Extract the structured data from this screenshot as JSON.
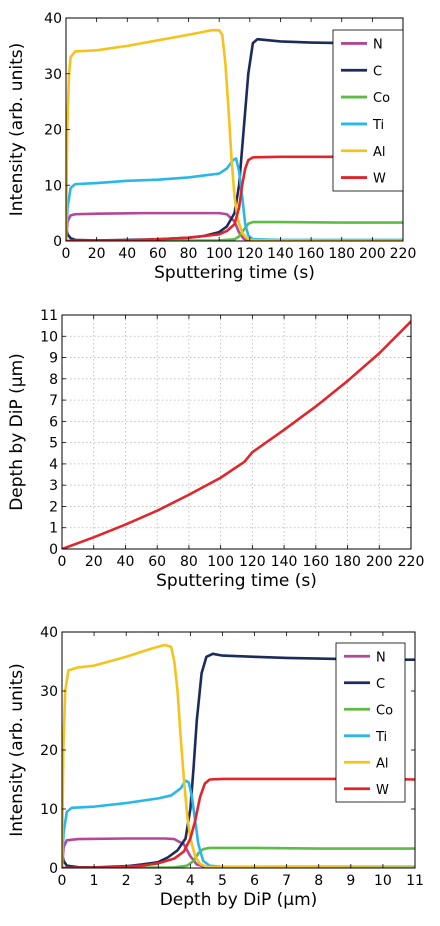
{
  "chart_data": [
    {
      "type": "line",
      "xlabel": "Sputtering time (s)",
      "ylabel": "Intensity (arb. units)",
      "xlim": [
        0,
        220
      ],
      "ylim": [
        0,
        40
      ],
      "xticks": [
        0,
        20,
        40,
        60,
        80,
        100,
        120,
        140,
        160,
        180,
        200,
        220
      ],
      "yticks": [
        0,
        10,
        20,
        30,
        40
      ],
      "grid": false,
      "legend": "top-right",
      "series": [
        {
          "name": "N",
          "color": "#b3489a",
          "points": [
            [
              0,
              0
            ],
            [
              1,
              3.5
            ],
            [
              3,
              4.6
            ],
            [
              6,
              4.8
            ],
            [
              20,
              4.9
            ],
            [
              50,
              5.0
            ],
            [
              80,
              5.0
            ],
            [
              100,
              5.0
            ],
            [
              105,
              4.8
            ],
            [
              110,
              3.5
            ],
            [
              113,
              1.5
            ],
            [
              116,
              0.4
            ],
            [
              120,
              0.1
            ],
            [
              220,
              0.05
            ]
          ]
        },
        {
          "name": "C",
          "color": "#1b2b5e",
          "points": [
            [
              0,
              2.5
            ],
            [
              1,
              1.2
            ],
            [
              3,
              0.5
            ],
            [
              6,
              0.2
            ],
            [
              20,
              0.1
            ],
            [
              40,
              0.2
            ],
            [
              60,
              0.3
            ],
            [
              80,
              0.6
            ],
            [
              90,
              0.9
            ],
            [
              100,
              1.6
            ],
            [
              105,
              2.6
            ],
            [
              110,
              5
            ],
            [
              113,
              10
            ],
            [
              116,
              20
            ],
            [
              119,
              30
            ],
            [
              122,
              35.5
            ],
            [
              125,
              36.2
            ],
            [
              140,
              35.8
            ],
            [
              160,
              35.6
            ],
            [
              180,
              35.5
            ],
            [
              200,
              35.4
            ],
            [
              220,
              35.3
            ]
          ]
        },
        {
          "name": "Co",
          "color": "#5dbb46",
          "points": [
            [
              0,
              0
            ],
            [
              100,
              0.1
            ],
            [
              110,
              0.3
            ],
            [
              113,
              0.8
            ],
            [
              116,
              2
            ],
            [
              119,
              3.1
            ],
            [
              122,
              3.4
            ],
            [
              140,
              3.4
            ],
            [
              180,
              3.3
            ],
            [
              220,
              3.3
            ]
          ]
        },
        {
          "name": "Ti",
          "color": "#2ab7e8",
          "points": [
            [
              0,
              0
            ],
            [
              1,
              6
            ],
            [
              3,
              9.5
            ],
            [
              6,
              10.2
            ],
            [
              20,
              10.4
            ],
            [
              40,
              10.8
            ],
            [
              60,
              11.0
            ],
            [
              80,
              11.4
            ],
            [
              100,
              12.1
            ],
            [
              105,
              13
            ],
            [
              109,
              14.5
            ],
            [
              111,
              14.8
            ],
            [
              113,
              12.5
            ],
            [
              115,
              8
            ],
            [
              117,
              3
            ],
            [
              119,
              1
            ],
            [
              122,
              0.3
            ],
            [
              140,
              0.2
            ],
            [
              220,
              0.2
            ]
          ]
        },
        {
          "name": "Al",
          "color": "#f6c21c",
          "points": [
            [
              0,
              0
            ],
            [
              0.8,
              20
            ],
            [
              2,
              30
            ],
            [
              3,
              33
            ],
            [
              6,
              34
            ],
            [
              20,
              34.2
            ],
            [
              40,
              35
            ],
            [
              60,
              36
            ],
            [
              80,
              37
            ],
            [
              95,
              37.8
            ],
            [
              100,
              37.8
            ],
            [
              102,
              37
            ],
            [
              104,
              32
            ],
            [
              106,
              24
            ],
            [
              108,
              15
            ],
            [
              110,
              8
            ],
            [
              112,
              4
            ],
            [
              115,
              1.5
            ],
            [
              118,
              0.5
            ],
            [
              122,
              0.1
            ],
            [
              220,
              0.05
            ]
          ]
        },
        {
          "name": "W",
          "color": "#e1262b",
          "points": [
            [
              0,
              0
            ],
            [
              10,
              0.05
            ],
            [
              40,
              0.1
            ],
            [
              60,
              0.3
            ],
            [
              80,
              0.6
            ],
            [
              100,
              1.2
            ],
            [
              105,
              1.8
            ],
            [
              110,
              3
            ],
            [
              113,
              6
            ],
            [
              115,
              10
            ],
            [
              117,
              13
            ],
            [
              119,
              14.5
            ],
            [
              122,
              15.0
            ],
            [
              140,
              15.1
            ],
            [
              160,
              15.1
            ],
            [
              180,
              15.1
            ],
            [
              200,
              15.1
            ],
            [
              220,
              15.0
            ]
          ]
        }
      ]
    },
    {
      "type": "line",
      "xlabel": "Sputtering time (s)",
      "ylabel": "Depth by DiP (µm)",
      "xlim": [
        0,
        220
      ],
      "ylim": [
        0,
        11
      ],
      "xticks": [
        0,
        20,
        40,
        60,
        80,
        100,
        120,
        140,
        160,
        180,
        200,
        220
      ],
      "yticks": [
        0,
        1,
        2,
        3,
        4,
        5,
        6,
        7,
        8,
        9,
        10,
        11
      ],
      "grid": true,
      "legend": "none",
      "series": [
        {
          "color": "#e1262b",
          "points": [
            [
              0,
              0
            ],
            [
              20,
              0.55
            ],
            [
              40,
              1.15
            ],
            [
              60,
              1.8
            ],
            [
              80,
              2.55
            ],
            [
              100,
              3.35
            ],
            [
              110,
              3.85
            ],
            [
              115,
              4.1
            ],
            [
              120,
              4.55
            ],
            [
              140,
              5.6
            ],
            [
              160,
              6.7
            ],
            [
              180,
              7.9
            ],
            [
              200,
              9.2
            ],
            [
              220,
              10.7
            ]
          ]
        }
      ]
    },
    {
      "type": "line",
      "xlabel": "Depth by DiP (µm)",
      "ylabel": "Intensity (arb. units)",
      "xlim": [
        0,
        11
      ],
      "ylim": [
        0,
        40
      ],
      "xticks": [
        0,
        1,
        2,
        3,
        4,
        5,
        6,
        7,
        8,
        9,
        10,
        11
      ],
      "yticks": [
        0,
        10,
        20,
        30,
        40
      ],
      "grid": false,
      "legend": "top-right",
      "series": [
        {
          "name": "N",
          "color": "#b3489a",
          "points": [
            [
              0,
              0
            ],
            [
              0.05,
              3.5
            ],
            [
              0.15,
              4.7
            ],
            [
              0.5,
              4.9
            ],
            [
              2,
              5.0
            ],
            [
              3.2,
              5.0
            ],
            [
              3.5,
              4.9
            ],
            [
              3.8,
              4.0
            ],
            [
              4.0,
              2.0
            ],
            [
              4.2,
              0.6
            ],
            [
              4.5,
              0.15
            ],
            [
              11,
              0.05
            ]
          ]
        },
        {
          "name": "C",
          "color": "#1b2b5e",
          "points": [
            [
              0,
              2.5
            ],
            [
              0.05,
              1.2
            ],
            [
              0.15,
              0.4
            ],
            [
              0.5,
              0.15
            ],
            [
              1,
              0.1
            ],
            [
              2,
              0.3
            ],
            [
              2.5,
              0.6
            ],
            [
              3,
              1.0
            ],
            [
              3.3,
              1.8
            ],
            [
              3.6,
              3
            ],
            [
              3.85,
              5
            ],
            [
              4.0,
              10
            ],
            [
              4.1,
              17
            ],
            [
              4.2,
              25
            ],
            [
              4.35,
              33
            ],
            [
              4.5,
              35.8
            ],
            [
              4.7,
              36.3
            ],
            [
              5,
              36
            ],
            [
              6,
              35.8
            ],
            [
              7,
              35.6
            ],
            [
              8,
              35.5
            ],
            [
              9,
              35.4
            ],
            [
              10,
              35.3
            ],
            [
              11,
              35.3
            ]
          ]
        },
        {
          "name": "Co",
          "color": "#5dbb46",
          "points": [
            [
              0,
              0
            ],
            [
              3.5,
              0.1
            ],
            [
              3.9,
              0.4
            ],
            [
              4.1,
              1.2
            ],
            [
              4.25,
              2.5
            ],
            [
              4.4,
              3.2
            ],
            [
              4.6,
              3.4
            ],
            [
              6,
              3.4
            ],
            [
              8,
              3.3
            ],
            [
              11,
              3.3
            ]
          ]
        },
        {
          "name": "Ti",
          "color": "#2ab7e8",
          "points": [
            [
              0,
              0
            ],
            [
              0.05,
              6
            ],
            [
              0.15,
              9.5
            ],
            [
              0.3,
              10.2
            ],
            [
              1,
              10.4
            ],
            [
              2,
              11
            ],
            [
              3,
              11.8
            ],
            [
              3.4,
              12.3
            ],
            [
              3.7,
              13.5
            ],
            [
              3.85,
              14.8
            ],
            [
              3.95,
              14.5
            ],
            [
              4.05,
              12
            ],
            [
              4.15,
              8
            ],
            [
              4.25,
              4
            ],
            [
              4.4,
              1.2
            ],
            [
              4.6,
              0.4
            ],
            [
              5,
              0.2
            ],
            [
              11,
              0.2
            ]
          ]
        },
        {
          "name": "Al",
          "color": "#f6c21c",
          "points": [
            [
              0,
              0
            ],
            [
              0.04,
              20
            ],
            [
              0.1,
              30
            ],
            [
              0.2,
              33.5
            ],
            [
              0.5,
              34
            ],
            [
              1,
              34.3
            ],
            [
              2,
              35.8
            ],
            [
              2.8,
              37.2
            ],
            [
              3.2,
              37.8
            ],
            [
              3.4,
              37.5
            ],
            [
              3.5,
              35
            ],
            [
              3.6,
              30
            ],
            [
              3.7,
              22
            ],
            [
              3.8,
              15
            ],
            [
              3.9,
              9
            ],
            [
              4.0,
              5
            ],
            [
              4.15,
              2
            ],
            [
              4.3,
              0.7
            ],
            [
              4.5,
              0.2
            ],
            [
              11,
              0.05
            ]
          ]
        },
        {
          "name": "W",
          "color": "#e1262b",
          "points": [
            [
              0,
              0
            ],
            [
              0.5,
              0.05
            ],
            [
              1.5,
              0.1
            ],
            [
              2.5,
              0.4
            ],
            [
              3,
              0.8
            ],
            [
              3.5,
              1.6
            ],
            [
              3.8,
              2.8
            ],
            [
              4.0,
              5
            ],
            [
              4.15,
              8
            ],
            [
              4.3,
              12
            ],
            [
              4.45,
              14.3
            ],
            [
              4.6,
              15
            ],
            [
              5,
              15.1
            ],
            [
              6,
              15.1
            ],
            [
              7,
              15.1
            ],
            [
              8,
              15.1
            ],
            [
              9,
              15.1
            ],
            [
              10,
              15.1
            ],
            [
              11,
              15.0
            ]
          ]
        }
      ]
    }
  ]
}
